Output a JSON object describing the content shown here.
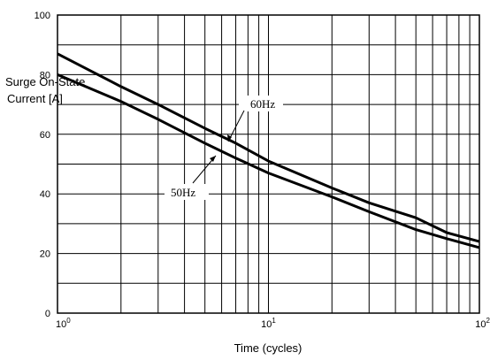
{
  "chart_data": {
    "type": "line",
    "ylabel_lines": [
      "Surge On-State",
      "Current [A]"
    ],
    "xlabel": "Time (cycles)",
    "x_scale": "log",
    "xlim": [
      1,
      100
    ],
    "ylim": [
      0,
      100
    ],
    "y_ticks": [
      0,
      20,
      40,
      60,
      80,
      100
    ],
    "y_tick_labels": [
      "0",
      "20",
      "40",
      "60",
      "80",
      "100"
    ],
    "x_tick_labels": [
      {
        "base": "10",
        "exp": "0"
      },
      {
        "base": "10",
        "exp": "1"
      },
      {
        "base": "10",
        "exp": "2"
      }
    ],
    "grid": true,
    "series": [
      {
        "name": "60Hz",
        "x": [
          1,
          2,
          3,
          5,
          7,
          10,
          20,
          30,
          50,
          70,
          100
        ],
        "y": [
          87,
          76,
          70,
          62,
          57,
          51,
          42,
          37,
          32,
          27,
          24
        ]
      },
      {
        "name": "50Hz",
        "x": [
          1,
          2,
          3,
          5,
          7,
          10,
          20,
          30,
          50,
          70,
          100
        ],
        "y": [
          80,
          71,
          65,
          57,
          52,
          47,
          39,
          34,
          28,
          25,
          22
        ]
      }
    ],
    "annotations": [
      "60Hz",
      "50Hz"
    ]
  }
}
